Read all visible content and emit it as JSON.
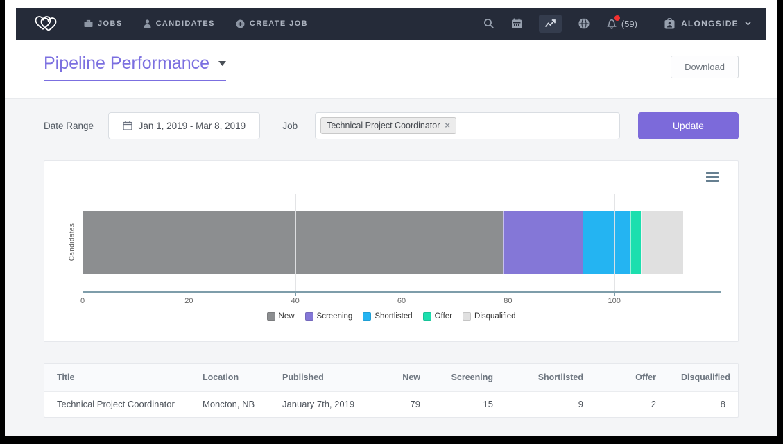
{
  "navbar": {
    "items": [
      {
        "label": "JOBS",
        "icon": "briefcase"
      },
      {
        "label": "CANDIDATES",
        "icon": "person"
      },
      {
        "label": "CREATE JOB",
        "icon": "plus-circle"
      }
    ],
    "right_icons": [
      "search",
      "calendar",
      "analytics",
      "globe",
      "notifications"
    ],
    "notification_count": "(59)",
    "account_label": "ALONGSIDE"
  },
  "header": {
    "title": "Pipeline Performance",
    "download_label": "Download"
  },
  "filters": {
    "date_range_label": "Date Range",
    "date_range_value": "Jan 1, 2019 - Mar 8, 2019",
    "job_label": "Job",
    "job_tag": "Technical Project Coordinator",
    "update_label": "Update"
  },
  "chart_data": {
    "type": "bar",
    "orientation": "horizontal",
    "stacked": true,
    "title": "",
    "xlabel": "",
    "ylabel": "Candidates",
    "categories": [
      "Candidates"
    ],
    "series": [
      {
        "name": "New",
        "values": [
          79
        ],
        "color": "#8c8e90"
      },
      {
        "name": "Screening",
        "values": [
          15
        ],
        "color": "#8477d7"
      },
      {
        "name": "Shortlisted",
        "values": [
          9
        ],
        "color": "#24b4f2"
      },
      {
        "name": "Offer",
        "values": [
          2
        ],
        "color": "#1cdfae"
      },
      {
        "name": "Disqualified",
        "values": [
          8
        ],
        "color": "#e0e0e0"
      }
    ],
    "xlim": [
      0,
      120
    ],
    "xticks": [
      0,
      20,
      40,
      60,
      80,
      100
    ],
    "grid": true,
    "legend_position": "bottom"
  },
  "table": {
    "columns": [
      {
        "label": "Title",
        "align": "left"
      },
      {
        "label": "Location",
        "align": "left"
      },
      {
        "label": "Published",
        "align": "left"
      },
      {
        "label": "New",
        "align": "right"
      },
      {
        "label": "Screening",
        "align": "right"
      },
      {
        "label": "Shortlisted",
        "align": "right"
      },
      {
        "label": "Offer",
        "align": "right"
      },
      {
        "label": "Disqualified",
        "align": "right"
      }
    ],
    "rows": [
      [
        "Technical Project Coordinator",
        "Moncton, NB",
        "January 7th, 2019",
        "79",
        "15",
        "9",
        "2",
        "8"
      ]
    ]
  },
  "colors": {
    "brand_purple": "#7b6fe0",
    "update_button": "#7c6ada",
    "navbar_bg": "#252b39",
    "notification_red": "#f43030",
    "content_bg": "#f4f5f7"
  }
}
